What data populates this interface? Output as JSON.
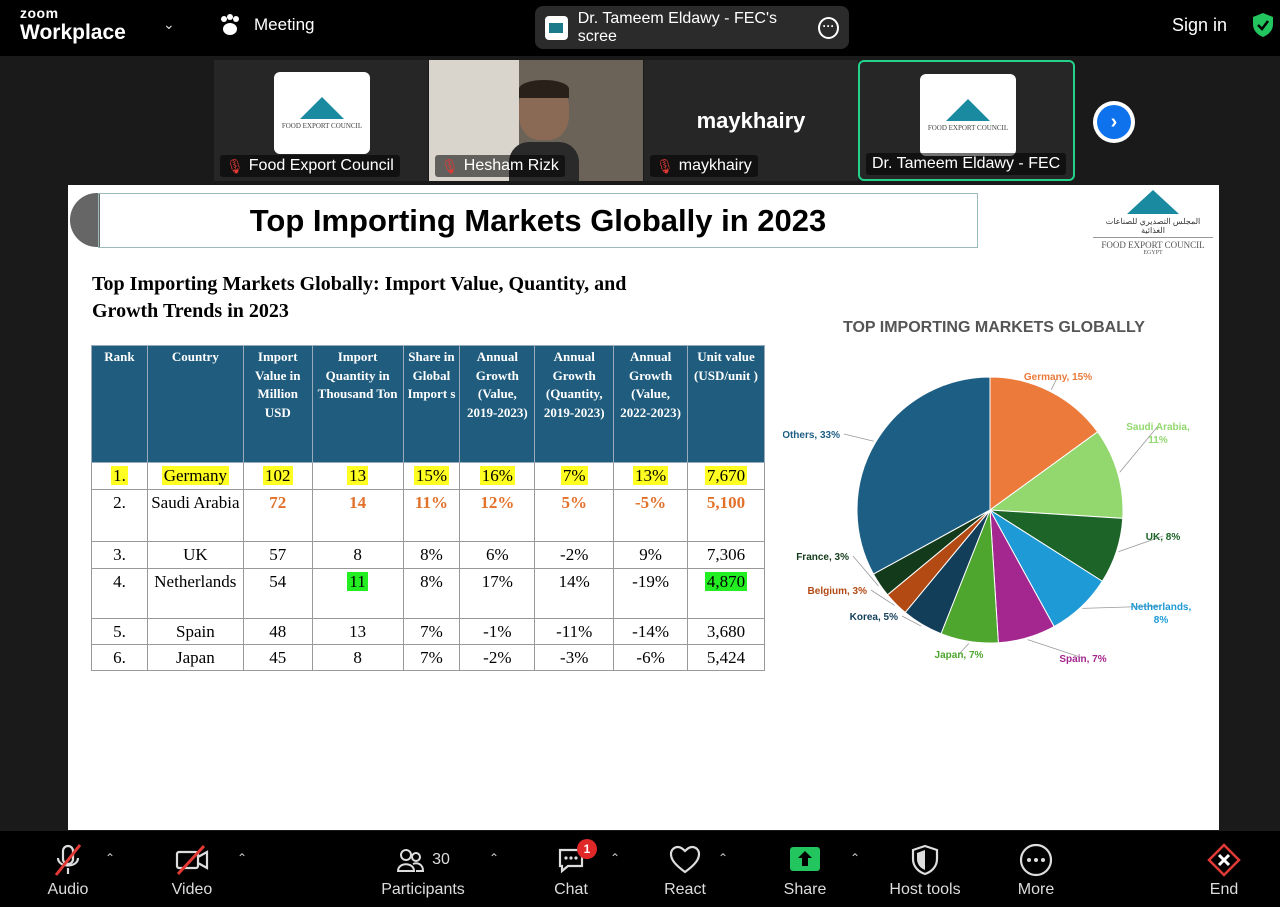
{
  "app": {
    "brand_small": "zoom",
    "brand_big": "Workplace",
    "meeting_label": "Meeting",
    "share_label": "Dr. Tameem Eldawy - FEC's scree",
    "signin": "Sign in"
  },
  "participants_strip": [
    {
      "name": "Food Export Council",
      "type": "logo",
      "muted": true
    },
    {
      "name": "Hesham Rizk",
      "type": "video",
      "muted": true
    },
    {
      "name": "maykhairy",
      "type": "name",
      "muted": true
    },
    {
      "name": "Dr. Tameem Eldawy - FEC",
      "type": "logo",
      "muted": false,
      "active": true
    }
  ],
  "slide": {
    "title": "Top Importing Markets Globally in 2023",
    "subtitle": "Top Importing Markets Globally: Import Value, Quantity, and Growth Trends in 2023",
    "logo_text": {
      "arabic": "المجلس التصديري للصناعات الغذائية",
      "english": "FOOD EXPORT COUNCIL",
      "country": "EGYPT"
    },
    "table": {
      "headers": [
        "Rank",
        "Country",
        "Import Value in Million USD",
        "Import Quantity in Thousand Ton",
        "Share in Global Import s",
        "Annual Growth (Value, 2019-2023)",
        "Annual Growth (Quantity, 2019-2023)",
        "Annual Growth (Value, 2022-2023)",
        "Unit value (USD/unit )"
      ],
      "rows": [
        [
          "1.",
          "Germany",
          "102",
          "13",
          "15%",
          "16%",
          "7%",
          "13%",
          "7,670"
        ],
        [
          "2.",
          "Saudi Arabia",
          "72",
          "14",
          "11%",
          "12%",
          "5%",
          "-5%",
          "5,100"
        ],
        [
          "3.",
          "UK",
          "57",
          "8",
          "8%",
          "6%",
          "-2%",
          "9%",
          "7,306"
        ],
        [
          "4.",
          "Netherlands",
          "54",
          "11",
          "8%",
          "17%",
          "14%",
          "-19%",
          "4,870"
        ],
        [
          "5.",
          "Spain",
          "48",
          "13",
          "7%",
          "-1%",
          "-11%",
          "-14%",
          "3,680"
        ],
        [
          "6.",
          "Japan",
          "45",
          "8",
          "7%",
          "-2%",
          "-3%",
          "-6%",
          "5,424"
        ]
      ]
    }
  },
  "chart_data": {
    "type": "pie",
    "title": "TOP IMPORTING MARKETS GLOBALLY",
    "categories": [
      "Germany",
      "Saudi Arabia",
      "UK",
      "Netherlands",
      "Spain",
      "Japan",
      "Korea",
      "Belgium",
      "France",
      "Others"
    ],
    "values": [
      15,
      11,
      8,
      8,
      7,
      7,
      5,
      3,
      3,
      33
    ],
    "labels": [
      "Germany, 15%",
      "Saudi Arabia, 11%",
      "UK, 8%",
      "Netherlands, 8%",
      "Spain, 7%",
      "Japan, 7%",
      "Korea, 5%",
      "Belgium, 3%",
      "France, 3%",
      "Others, 33%"
    ],
    "colors": [
      "#ec7a3a",
      "#93d86e",
      "#1c6428",
      "#1e9ad6",
      "#a3278f",
      "#4ea62e",
      "#133e5a",
      "#b34a14",
      "#143a1c",
      "#1d5f84"
    ]
  },
  "toolbar": [
    {
      "label": "Audio",
      "icon": "mic-muted-icon",
      "caret": true
    },
    {
      "label": "Video",
      "icon": "video-off-icon",
      "caret": true
    },
    {
      "label": "Participants",
      "icon": "participants-icon",
      "count": "30",
      "caret": true
    },
    {
      "label": "Chat",
      "icon": "chat-icon",
      "badge": "1",
      "caret": true
    },
    {
      "label": "React",
      "icon": "heart-icon",
      "caret": true
    },
    {
      "label": "Share",
      "icon": "share-icon",
      "caret": true
    },
    {
      "label": "Host tools",
      "icon": "shield-icon"
    },
    {
      "label": "More",
      "icon": "more-icon"
    },
    {
      "label": "End",
      "icon": "end-icon"
    }
  ]
}
